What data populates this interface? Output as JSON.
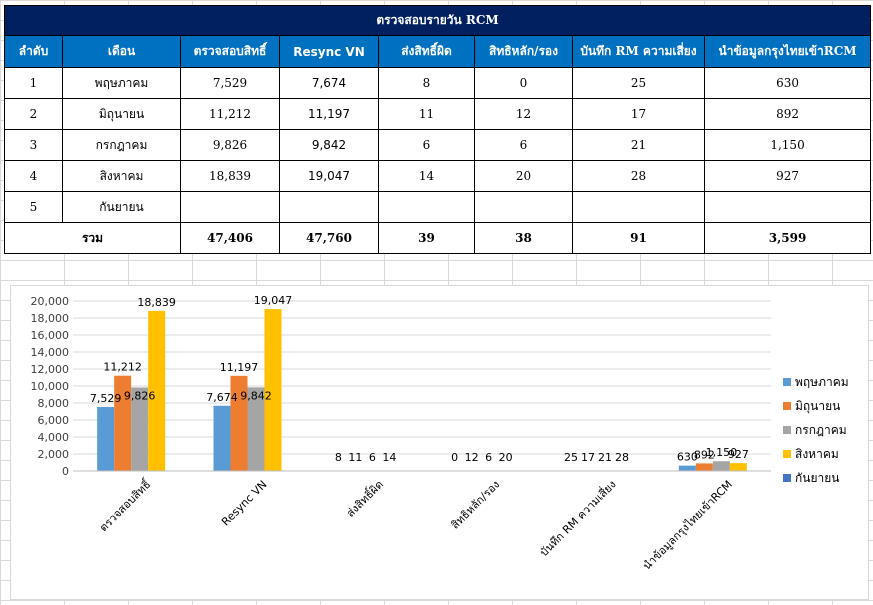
{
  "table": {
    "title": "ตรวจสอบรายวัน RCM",
    "headers": [
      "ลำดับ",
      "เดือน",
      "ตรวจสอบสิทธิ์",
      "Resync VN",
      "ส่งสิทธิ์ผิด",
      "สิทธิหลัก/รอง",
      "บันทึก RM ความเสี่ยง",
      "นำข้อมูลกรุงไทยเข้าRCM"
    ],
    "rows": [
      [
        "1",
        "พฤษภาคม",
        "7,529",
        "7,674",
        "8",
        "0",
        "25",
        "630"
      ],
      [
        "2",
        "มิถุนายน",
        "11,212",
        "11,197",
        "11",
        "12",
        "17",
        "892"
      ],
      [
        "3",
        "กรกฎาคม",
        "9,826",
        "9,842",
        "6",
        "6",
        "21",
        "1,150"
      ],
      [
        "4",
        "สิงหาคม",
        "18,839",
        "19,047",
        "14",
        "20",
        "28",
        "927"
      ],
      [
        "5",
        "กันยายน",
        "",
        "",
        "",
        "",
        "",
        ""
      ]
    ],
    "total": [
      "รวม",
      "47,406",
      "47,760",
      "39",
      "38",
      "91",
      "3,599"
    ]
  },
  "chart_data": {
    "type": "bar",
    "categories": [
      "ตรวจสอบสิทธิ์",
      "Resync VN",
      "ส่งสิทธิ์ผิด",
      "สิทธิหลัก/รอง",
      "บันทึก RM ความเสี่ยง",
      "นำข้อมูลกรุงไทยเข้าRCM"
    ],
    "series": [
      {
        "name": "พฤษภาคม",
        "color": "#5b9bd5",
        "values": [
          7529,
          7674,
          8,
          0,
          25,
          630
        ],
        "labels": [
          "7,529",
          "7,674",
          "8",
          "0",
          "25",
          "630"
        ]
      },
      {
        "name": "มิถุนายน",
        "color": "#ed7d31",
        "values": [
          11212,
          11197,
          11,
          12,
          17,
          892
        ],
        "labels": [
          "11,212",
          "11,197",
          "11",
          "12",
          "17",
          "892"
        ]
      },
      {
        "name": "กรกฎาคม",
        "color": "#a5a5a5",
        "values": [
          9826,
          9842,
          6,
          6,
          21,
          1150
        ],
        "labels": [
          "9,826",
          "9,842",
          "6",
          "6",
          "21",
          "1,150"
        ]
      },
      {
        "name": "สิงหาคม",
        "color": "#ffc000",
        "values": [
          18839,
          19047,
          14,
          20,
          28,
          927
        ],
        "labels": [
          "18,839",
          "19,047",
          "14",
          "20",
          "28",
          "927"
        ]
      },
      {
        "name": "กันยายน",
        "color": "#4472c4",
        "values": [
          null,
          null,
          null,
          null,
          null,
          null
        ],
        "labels": [
          "",
          "",
          "",
          "",
          "",
          ""
        ]
      }
    ],
    "ylim": [
      0,
      20000
    ],
    "yticks": [
      "0",
      "2,000",
      "4,000",
      "6,000",
      "8,000",
      "10,000",
      "12,000",
      "14,000",
      "16,000",
      "18,000",
      "20,000"
    ],
    "ytick_values": [
      0,
      2000,
      4000,
      6000,
      8000,
      10000,
      12000,
      14000,
      16000,
      18000,
      20000
    ],
    "grid": true,
    "legend": "right",
    "title": "",
    "xlabel": "",
    "ylabel": ""
  }
}
